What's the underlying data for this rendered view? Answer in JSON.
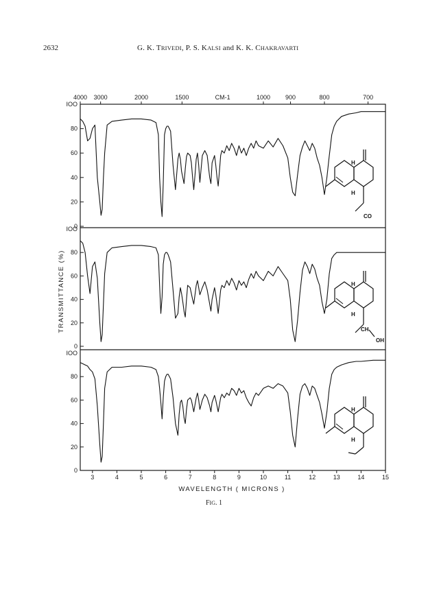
{
  "header": {
    "page_number": "2632",
    "authors_prefix": "G. K. T",
    "authors_sc1": "RIVEDI",
    "authors_mid1": ", P. S. K",
    "authors_sc2": "ALSI",
    "authors_mid2": " and K. K. C",
    "authors_sc3": "HAKRAVARTI"
  },
  "figure": {
    "caption_prefix": "F",
    "caption_sc": "IG",
    "caption_suffix": ". 1"
  },
  "chart_data": {
    "type": "line",
    "title": "",
    "xlabel": "WAVELENGTH   ( MICRONS )",
    "ylabel": "TRANSMITTANCE (%)",
    "top_axis_label": "CM-1",
    "top_ticks": [
      {
        "label": "4000",
        "um": 2.5
      },
      {
        "label": "3000",
        "um": 3.333
      },
      {
        "label": "2000",
        "um": 5.0
      },
      {
        "label": "1500",
        "um": 6.667
      },
      {
        "label": "1000",
        "um": 10.0
      },
      {
        "label": "900",
        "um": 11.111
      },
      {
        "label": "800",
        "um": 12.5
      },
      {
        "label": "700",
        "um": 14.286
      }
    ],
    "x_ticks": [
      {
        "label": "3",
        "um": 3
      },
      {
        "label": "4",
        "um": 4
      },
      {
        "label": "5",
        "um": 5
      },
      {
        "label": "6",
        "um": 6
      },
      {
        "label": "7",
        "um": 7
      },
      {
        "label": "8",
        "um": 8
      },
      {
        "label": "9",
        "um": 9
      },
      {
        "label": "10",
        "um": 10
      },
      {
        "label": "11",
        "um": 11
      },
      {
        "label": "12",
        "um": 12
      },
      {
        "label": "13",
        "um": 13
      },
      {
        "label": "14",
        "um": 14
      },
      {
        "label": "15",
        "um": 15
      }
    ],
    "xlim": [
      2.5,
      15
    ],
    "ylim": [
      0,
      100
    ],
    "y_ticks": [
      {
        "label": "0",
        "v": 0
      },
      {
        "label": "20",
        "v": 20
      },
      {
        "label": "40",
        "v": 40
      },
      {
        "label": "60",
        "v": 60
      },
      {
        "label": "80",
        "v": 80
      },
      {
        "label": "IOO",
        "v": 100
      }
    ],
    "series": [
      {
        "x": [
          2.5,
          2.6,
          2.7,
          2.8,
          2.9,
          3.0,
          3.1,
          3.2,
          3.3,
          3.35,
          3.4,
          3.45,
          3.5,
          3.6,
          3.8,
          4.2,
          4.6,
          5.0,
          5.4,
          5.6,
          5.7,
          5.75,
          5.8,
          5.85,
          5.9,
          5.95,
          6.0,
          6.05,
          6.1,
          6.2,
          6.3,
          6.4,
          6.5,
          6.55,
          6.6,
          6.65,
          6.7,
          6.75,
          6.8,
          6.85,
          6.9,
          7.0,
          7.05,
          7.1,
          7.15,
          7.2,
          7.25,
          7.3,
          7.35,
          7.4,
          7.5,
          7.6,
          7.7,
          7.8,
          7.85,
          7.9,
          8.0,
          8.05,
          8.1,
          8.15,
          8.2,
          8.25,
          8.3,
          8.4,
          8.5,
          8.6,
          8.7,
          8.8,
          8.9,
          9.0,
          9.1,
          9.2,
          9.3,
          9.4,
          9.5,
          9.6,
          9.7,
          9.8,
          10.0,
          10.2,
          10.4,
          10.6,
          10.8,
          11.0,
          11.1,
          11.2,
          11.3,
          11.4,
          11.5,
          11.6,
          11.7,
          11.8,
          11.9,
          12.0,
          12.1,
          12.2,
          12.3,
          12.4,
          12.5,
          12.6,
          12.7,
          12.8,
          12.9,
          13.0,
          13.2,
          13.5,
          13.8,
          14.0,
          14.5,
          15.0
        ],
        "values": [
          88,
          86,
          82,
          70,
          72,
          80,
          83,
          40,
          20,
          9,
          14,
          40,
          60,
          83,
          86,
          87,
          88,
          88,
          87,
          85,
          75,
          40,
          20,
          8,
          35,
          75,
          80,
          82,
          82,
          78,
          50,
          30,
          55,
          60,
          55,
          45,
          40,
          35,
          47,
          57,
          60,
          58,
          52,
          40,
          30,
          42,
          55,
          60,
          50,
          36,
          58,
          62,
          58,
          40,
          35,
          52,
          58,
          50,
          40,
          33,
          45,
          58,
          62,
          60,
          66,
          62,
          68,
          64,
          58,
          66,
          60,
          64,
          58,
          64,
          68,
          64,
          70,
          66,
          64,
          70,
          65,
          72,
          66,
          56,
          40,
          28,
          25,
          42,
          58,
          65,
          70,
          66,
          62,
          68,
          64,
          56,
          50,
          40,
          26,
          40,
          58,
          75,
          82,
          86,
          90,
          92,
          93,
          94,
          94,
          94
        ]
      },
      {
        "x": [
          2.5,
          2.6,
          2.7,
          2.8,
          2.9,
          3.0,
          3.1,
          3.2,
          3.3,
          3.35,
          3.4,
          3.45,
          3.5,
          3.6,
          3.8,
          4.2,
          4.6,
          5.0,
          5.4,
          5.6,
          5.7,
          5.75,
          5.8,
          5.85,
          5.9,
          5.95,
          6.0,
          6.05,
          6.1,
          6.2,
          6.3,
          6.4,
          6.5,
          6.55,
          6.6,
          6.65,
          6.7,
          6.75,
          6.8,
          6.85,
          6.9,
          7.0,
          7.05,
          7.1,
          7.15,
          7.2,
          7.25,
          7.3,
          7.35,
          7.4,
          7.5,
          7.6,
          7.7,
          7.8,
          7.85,
          7.9,
          8.0,
          8.05,
          8.1,
          8.15,
          8.2,
          8.25,
          8.3,
          8.4,
          8.5,
          8.6,
          8.7,
          8.8,
          8.9,
          9.0,
          9.1,
          9.2,
          9.3,
          9.4,
          9.5,
          9.6,
          9.7,
          9.8,
          10.0,
          10.2,
          10.4,
          10.6,
          10.8,
          11.0,
          11.1,
          11.2,
          11.3,
          11.4,
          11.5,
          11.6,
          11.7,
          11.8,
          11.9,
          12.0,
          12.1,
          12.2,
          12.3,
          12.4,
          12.5,
          12.6,
          12.7,
          12.8,
          12.9,
          13.0,
          13.2,
          13.5,
          13.8,
          14.0,
          14.5,
          15.0
        ],
        "values": [
          90,
          88,
          80,
          60,
          45,
          68,
          72,
          58,
          20,
          4,
          10,
          36,
          62,
          80,
          84,
          85,
          86,
          86,
          85,
          84,
          78,
          52,
          28,
          42,
          70,
          78,
          80,
          80,
          78,
          72,
          48,
          24,
          28,
          42,
          50,
          45,
          38,
          30,
          25,
          40,
          52,
          50,
          45,
          40,
          36,
          44,
          52,
          56,
          50,
          44,
          50,
          55,
          48,
          36,
          30,
          40,
          50,
          44,
          36,
          28,
          38,
          48,
          52,
          50,
          56,
          52,
          58,
          54,
          48,
          56,
          52,
          55,
          50,
          57,
          62,
          58,
          64,
          60,
          56,
          64,
          60,
          68,
          62,
          56,
          40,
          14,
          4,
          22,
          46,
          65,
          72,
          68,
          62,
          70,
          66,
          58,
          52,
          38,
          28,
          40,
          62,
          75,
          78,
          80,
          80,
          80,
          80,
          80,
          80,
          80
        ]
      },
      {
        "x": [
          2.5,
          2.6,
          2.7,
          2.8,
          2.9,
          3.0,
          3.1,
          3.2,
          3.3,
          3.35,
          3.4,
          3.45,
          3.5,
          3.6,
          3.8,
          4.2,
          4.6,
          5.0,
          5.4,
          5.6,
          5.7,
          5.75,
          5.8,
          5.85,
          5.9,
          5.95,
          6.0,
          6.05,
          6.1,
          6.2,
          6.3,
          6.4,
          6.5,
          6.55,
          6.6,
          6.65,
          6.7,
          6.75,
          6.8,
          6.85,
          6.9,
          7.0,
          7.05,
          7.1,
          7.15,
          7.2,
          7.25,
          7.3,
          7.35,
          7.4,
          7.5,
          7.6,
          7.7,
          7.8,
          7.85,
          7.9,
          8.0,
          8.05,
          8.1,
          8.15,
          8.2,
          8.25,
          8.3,
          8.4,
          8.5,
          8.6,
          8.7,
          8.8,
          8.9,
          9.0,
          9.1,
          9.2,
          9.3,
          9.4,
          9.5,
          9.6,
          9.7,
          9.8,
          10.0,
          10.2,
          10.4,
          10.6,
          10.8,
          11.0,
          11.1,
          11.2,
          11.3,
          11.4,
          11.5,
          11.6,
          11.7,
          11.8,
          11.9,
          12.0,
          12.1,
          12.2,
          12.3,
          12.4,
          12.5,
          12.6,
          12.7,
          12.8,
          12.9,
          13.0,
          13.2,
          13.5,
          13.8,
          14.0,
          14.5,
          15.0
        ],
        "values": [
          92,
          91,
          90,
          89,
          86,
          84,
          78,
          55,
          22,
          7,
          12,
          40,
          70,
          84,
          88,
          88,
          89,
          89,
          88,
          86,
          80,
          70,
          58,
          44,
          62,
          76,
          80,
          82,
          82,
          78,
          62,
          40,
          30,
          48,
          58,
          60,
          55,
          45,
          40,
          52,
          60,
          62,
          60,
          55,
          50,
          56,
          62,
          66,
          60,
          52,
          60,
          65,
          62,
          55,
          50,
          58,
          64,
          60,
          55,
          50,
          56,
          62,
          65,
          62,
          66,
          64,
          70,
          68,
          64,
          70,
          66,
          68,
          62,
          58,
          55,
          62,
          66,
          64,
          70,
          72,
          70,
          74,
          72,
          66,
          50,
          30,
          20,
          44,
          65,
          72,
          74,
          70,
          64,
          72,
          70,
          64,
          58,
          48,
          36,
          50,
          70,
          82,
          86,
          88,
          90,
          92,
          93,
          93,
          94,
          94
        ]
      }
    ]
  },
  "structures": [
    {
      "labels": [
        "H",
        "H",
        "CO"
      ]
    },
    {
      "labels": [
        "H",
        "H",
        "CH",
        "OH"
      ]
    },
    {
      "labels": [
        "H",
        "H"
      ]
    }
  ]
}
